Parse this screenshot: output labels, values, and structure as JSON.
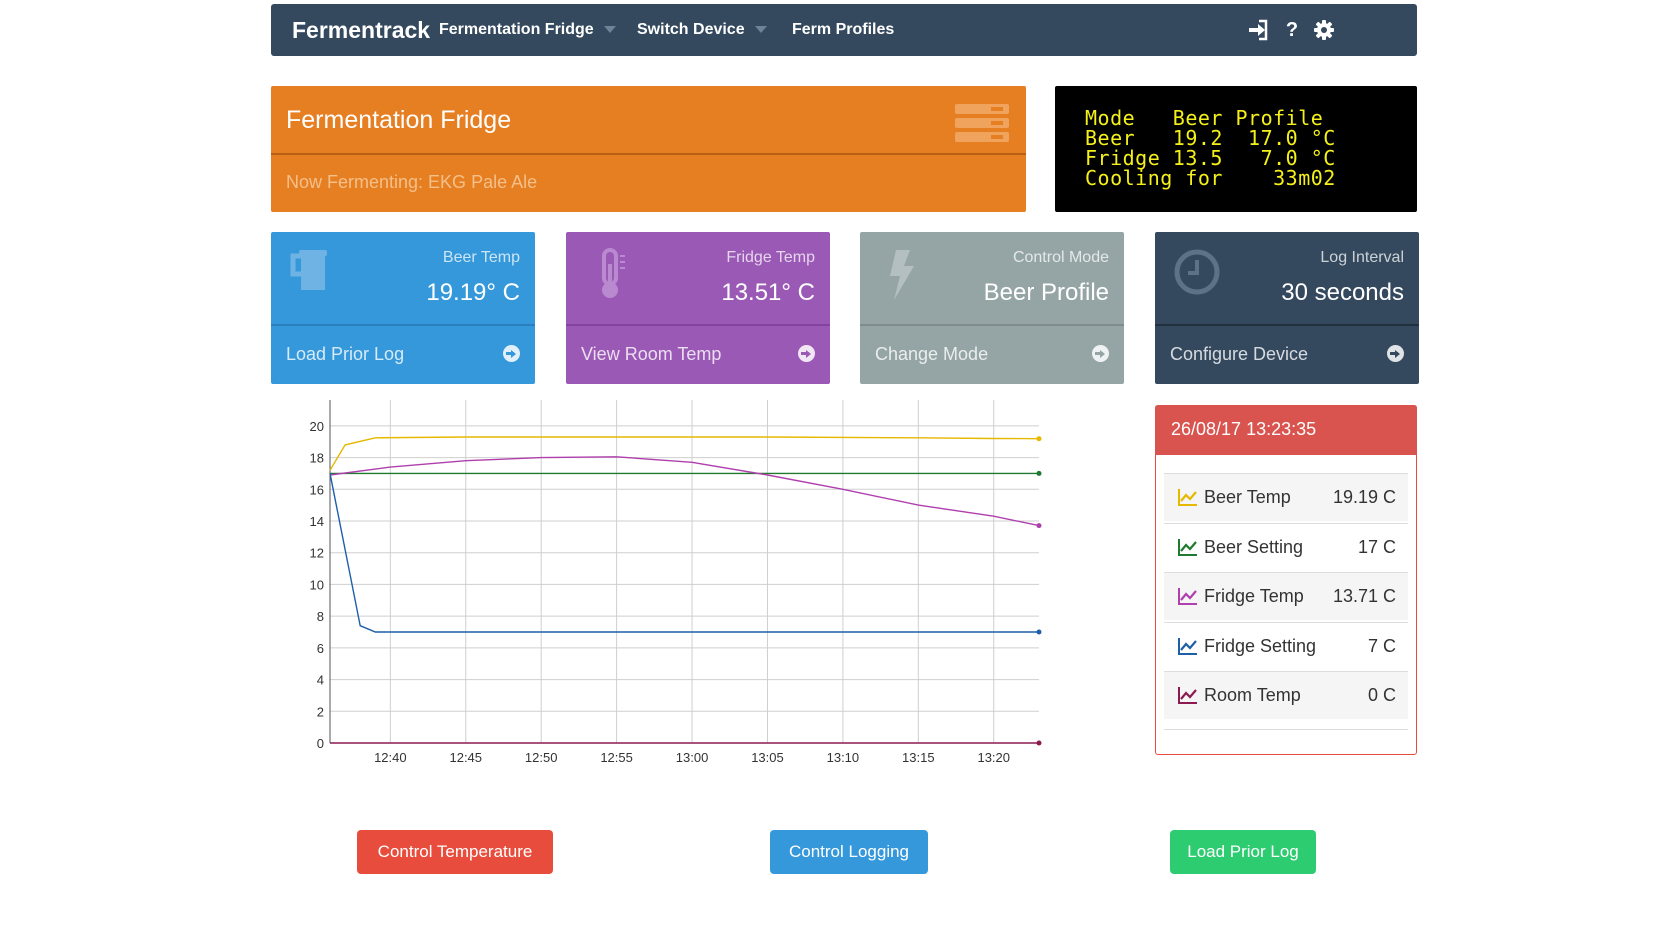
{
  "navbar": {
    "brand": "Fermentrack",
    "items": [
      {
        "label": "Fermentation Fridge",
        "dropdown": true
      },
      {
        "label": "Switch Device",
        "dropdown": true
      },
      {
        "label": "Ferm Profiles",
        "dropdown": false
      }
    ],
    "icons": [
      "sign-in-icon",
      "help-icon",
      "gear-icon"
    ]
  },
  "device": {
    "title": "Fermentation Fridge",
    "subtitle": "Now Fermenting: EKG Pale Ale"
  },
  "lcd": {
    "lines": [
      "Mode   Beer Profile",
      "Beer   19.2  17.0 °C",
      "Fridge 13.5   7.0 °C",
      "Cooling for    33m02"
    ]
  },
  "cards": [
    {
      "label": "Beer Temp",
      "value": "19.19° C",
      "link": "Load Prior Log",
      "icon": "beer-mug-icon",
      "color": "#3498db"
    },
    {
      "label": "Fridge Temp",
      "value": "13.51° C",
      "link": "View Room Temp",
      "icon": "thermometer-icon",
      "color": "#9b59b6"
    },
    {
      "label": "Control Mode",
      "value": "Beer Profile",
      "link": "Change Mode",
      "icon": "bolt-icon",
      "color": "#95a5a6"
    },
    {
      "label": "Log Interval",
      "value": "30 seconds",
      "link": "Configure Device",
      "icon": "clock-icon",
      "color": "#34495e"
    }
  ],
  "legend": {
    "timestamp": "26/08/17 13:23:35",
    "rows": [
      {
        "name": "Beer Temp",
        "value": "19.19 C",
        "color": "#e6b800"
      },
      {
        "name": "Beer Setting",
        "value": "17 C",
        "color": "#1e7a2e"
      },
      {
        "name": "Fridge Temp",
        "value": "13.71 C",
        "color": "#b03fae"
      },
      {
        "name": "Fridge Setting",
        "value": "7 C",
        "color": "#1f5fa8"
      },
      {
        "name": "Room Temp",
        "value": "0 C",
        "color": "#8b1a50"
      }
    ]
  },
  "buttons": [
    {
      "label": "Control Temperature",
      "color": "#e74c3c"
    },
    {
      "label": "Control Logging",
      "color": "#3498db"
    },
    {
      "label": "Load Prior Log",
      "color": "#2ecc71"
    }
  ],
  "chart_data": {
    "type": "line",
    "title": "",
    "xlabel": "",
    "ylabel": "",
    "x_ticks": [
      "12:40",
      "12:45",
      "12:50",
      "12:55",
      "13:00",
      "13:05",
      "13:10",
      "13:15",
      "13:20"
    ],
    "y_ticks": [
      0,
      2,
      4,
      6,
      8,
      10,
      12,
      14,
      16,
      18,
      20
    ],
    "xlim": [
      "12:36",
      "13:23"
    ],
    "ylim": [
      0,
      21
    ],
    "grid": true,
    "series": [
      {
        "name": "Beer Temp",
        "color": "#e6b800",
        "x": [
          "12:36",
          "12:37",
          "12:39",
          "12:45",
          "12:55",
          "13:05",
          "13:15",
          "13:20",
          "13:23"
        ],
        "y": [
          17.2,
          18.8,
          19.25,
          19.3,
          19.3,
          19.3,
          19.25,
          19.2,
          19.19
        ]
      },
      {
        "name": "Beer Setting",
        "color": "#1e7a2e",
        "x": [
          "12:36",
          "13:23"
        ],
        "y": [
          17.0,
          17.0
        ]
      },
      {
        "name": "Fridge Temp",
        "color": "#b03fae",
        "x": [
          "12:36",
          "12:40",
          "12:45",
          "12:50",
          "12:55",
          "13:00",
          "13:05",
          "13:10",
          "13:15",
          "13:20",
          "13:23"
        ],
        "y": [
          16.9,
          17.4,
          17.8,
          18.0,
          18.05,
          17.7,
          16.9,
          16.0,
          15.0,
          14.3,
          13.71
        ]
      },
      {
        "name": "Fridge Setting",
        "color": "#1f5fa8",
        "x": [
          "12:36",
          "12:38",
          "12:39",
          "13:23"
        ],
        "y": [
          17.0,
          7.4,
          7.0,
          7.0
        ]
      },
      {
        "name": "Room Temp",
        "color": "#8b1a50",
        "x": [
          "12:36",
          "13:23"
        ],
        "y": [
          0,
          0
        ]
      }
    ]
  }
}
